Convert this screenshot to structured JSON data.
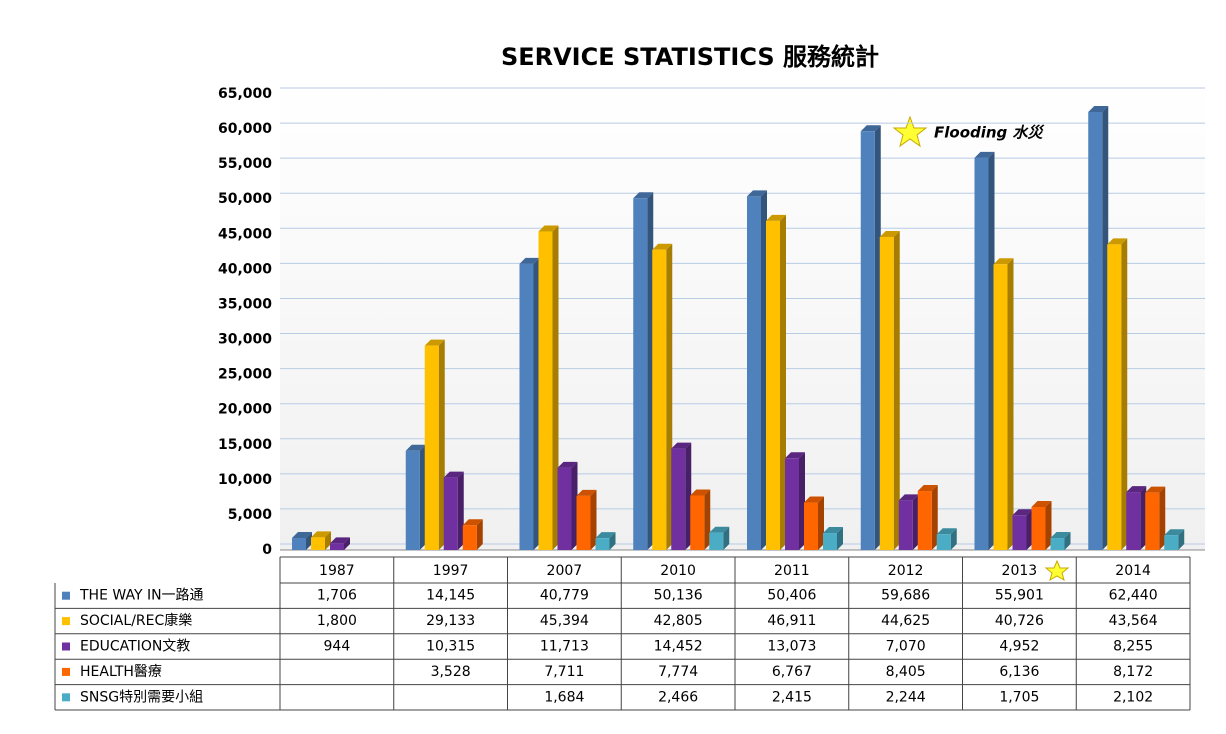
{
  "chart_data": {
    "type": "bar",
    "title": "SERVICE STATISTICS  服務統計",
    "annotation": "Flooding 水災",
    "categories": [
      "1987",
      "1997",
      "2007",
      "2010",
      "2011",
      "2012",
      "2013",
      "2014"
    ],
    "ylim": [
      0,
      65000
    ],
    "yticks": [
      0,
      {
        "value": 5000,
        "label": "5,000"
      },
      {
        "value": 10000,
        "label": "10,000"
      },
      {
        "value": 15000,
        "label": "15,000"
      },
      {
        "value": 20000,
        "label": "20,000"
      },
      {
        "value": 25000,
        "label": "25,000"
      },
      {
        "value": 30000,
        "label": "30,000"
      },
      {
        "value": 35000,
        "label": "35,000"
      },
      {
        "value": 40000,
        "label": "40,000"
      },
      {
        "value": 45000,
        "label": "45,000"
      },
      {
        "value": 50000,
        "label": "50,000"
      },
      {
        "value": 55000,
        "label": "55,000"
      },
      {
        "value": 60000,
        "label": "60,000"
      },
      {
        "value": 65000,
        "label": "65,000"
      }
    ],
    "grid": true,
    "series": [
      {
        "name": "THE WAY IN一路通",
        "color": "#4f81bd",
        "values": [
          1706,
          14145,
          40779,
          50136,
          50406,
          59686,
          55901,
          62440
        ],
        "value_labels": [
          "1,706",
          "14,145",
          "40,779",
          "50,136",
          "50,406",
          "59,686",
          "55,901",
          "62,440"
        ]
      },
      {
        "name": "SOCIAL/REC康樂",
        "color": "#ffc000",
        "values": [
          1800,
          29133,
          45394,
          42805,
          46911,
          44625,
          40726,
          43564
        ],
        "value_labels": [
          "1,800",
          "29,133",
          "45,394",
          "42,805",
          "46,911",
          "44,625",
          "40,726",
          "43,564"
        ]
      },
      {
        "name": "EDUCATION文教",
        "color": "#7030a0",
        "values": [
          944,
          10315,
          11713,
          14452,
          13073,
          7070,
          4952,
          8255
        ],
        "value_labels": [
          "944",
          "10,315",
          "11,713",
          "14,452",
          "13,073",
          "7,070",
          "4,952",
          "8,255"
        ]
      },
      {
        "name": "HEALTH醫療",
        "color": "#ff6600",
        "values": [
          null,
          3528,
          7711,
          7774,
          6767,
          8405,
          6136,
          8172
        ],
        "value_labels": [
          null,
          "3,528",
          "7,711",
          "7,774",
          "6,767",
          "8,405",
          "6,136",
          "8,172"
        ]
      },
      {
        "name": "SNSG特別需要小組",
        "color": "#4bacc6",
        "values": [
          null,
          null,
          1684,
          2466,
          2415,
          2244,
          1705,
          2102
        ],
        "value_labels": [
          null,
          null,
          "1,684",
          "2,466",
          "2,415",
          "2,244",
          "1,705",
          "2,102"
        ]
      }
    ]
  }
}
